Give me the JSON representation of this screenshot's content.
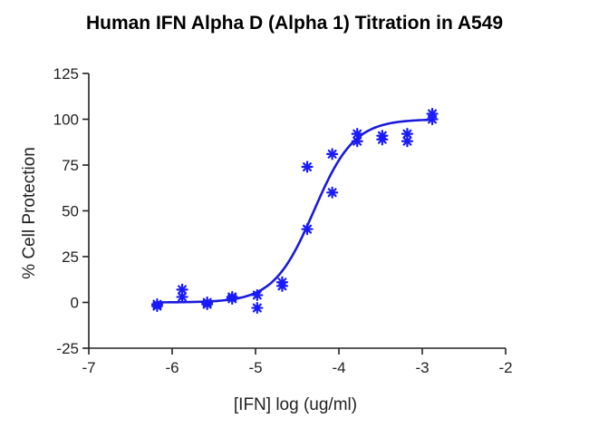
{
  "chart_data": {
    "type": "scatter",
    "title": "Human IFN Alpha D (Alpha 1) Titration in A549",
    "xlabel": "[IFN] log (ug/ml)",
    "ylabel": "% Cell Protection",
    "xlim": [
      -7,
      -2
    ],
    "ylim": [
      -25,
      125
    ],
    "xticks": [
      -7,
      -6,
      -5,
      -4,
      -3,
      -2
    ],
    "yticks": [
      -25,
      0,
      25,
      50,
      75,
      100,
      125
    ],
    "grid": false,
    "marker_color": "#1a1aff",
    "curve_color": "#1a1adb",
    "series": [
      {
        "marker": "asterisk",
        "points": [
          [
            -6.18,
            -1
          ],
          [
            -6.18,
            -2
          ],
          [
            -5.88,
            7
          ],
          [
            -5.88,
            3
          ],
          [
            -5.58,
            0
          ],
          [
            -5.58,
            -1
          ],
          [
            -5.28,
            3
          ],
          [
            -5.28,
            2
          ],
          [
            -4.98,
            4
          ],
          [
            -4.98,
            -3
          ],
          [
            -4.68,
            11
          ],
          [
            -4.68,
            9
          ],
          [
            -4.38,
            74
          ],
          [
            -4.38,
            40
          ],
          [
            -4.08,
            81
          ],
          [
            -4.08,
            60
          ],
          [
            -3.78,
            92
          ],
          [
            -3.78,
            88
          ],
          [
            -3.48,
            91
          ],
          [
            -3.48,
            89
          ],
          [
            -3.18,
            92
          ],
          [
            -3.18,
            88
          ],
          [
            -2.88,
            103
          ],
          [
            -2.88,
            100
          ]
        ]
      }
    ],
    "fit_curve": {
      "model": "4PL",
      "bottom": 0,
      "top": 100,
      "logEC50": -4.3,
      "hill": 1.8,
      "x_range": [
        -6.18,
        -2.88
      ]
    }
  }
}
